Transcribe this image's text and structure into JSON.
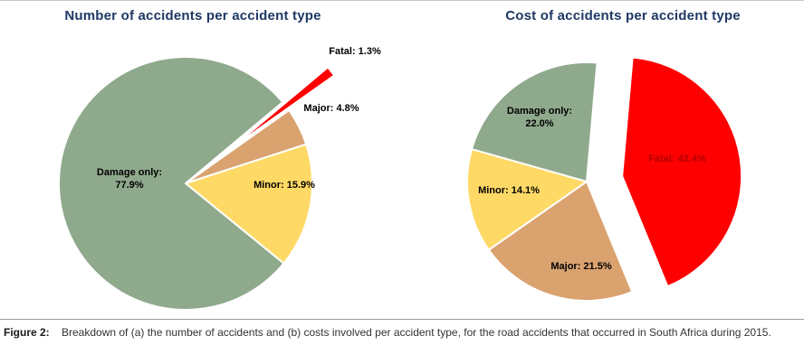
{
  "page": {
    "background": "#ffffff"
  },
  "figure": {
    "caption_label": "Figure 2:",
    "caption_text": "Breakdown of (a) the number of accidents and (b) costs involved per accident type, for the road accidents that occurred in South Africa during 2015."
  },
  "chart_data": [
    {
      "type": "pie",
      "title": "Number of accidents per accident type",
      "title_color": "#1F3864",
      "categories": [
        "Fatal",
        "Major",
        "Minor",
        "Damage only"
      ],
      "values": [
        1.3,
        4.8,
        15.9,
        77.9
      ],
      "unit": "%",
      "colors": [
        "#FF0000",
        "#D9A26F",
        "#FFD966",
        "#8FA98C"
      ],
      "start_angle": 50,
      "explode": [
        0.45,
        0,
        0,
        0
      ],
      "legend": "none",
      "labels": [
        {
          "for": "Fatal",
          "text": "Fatal: 1.3%"
        },
        {
          "for": "Major",
          "text": "Major: 4.8%"
        },
        {
          "for": "Minor",
          "text": "Minor: 15.9%"
        },
        {
          "for": "Damage only",
          "text": "Damage only: 77.9%"
        }
      ]
    },
    {
      "type": "pie",
      "title": "Cost of accidents per accident type",
      "title_color": "#1F3864",
      "categories": [
        "Fatal",
        "Major",
        "Minor",
        "Damage only"
      ],
      "values": [
        42.4,
        21.5,
        14.1,
        22.0
      ],
      "unit": "%",
      "colors": [
        "#FF0000",
        "#D9A26F",
        "#FFD966",
        "#8FA98C"
      ],
      "start_angle": 5,
      "explode": [
        0.3,
        0,
        0,
        0
      ],
      "legend": "none",
      "labels": [
        {
          "for": "Damage only",
          "text": "Damage only: 22.0%"
        },
        {
          "for": "Minor",
          "text": "Minor: 14.1%"
        },
        {
          "for": "Major",
          "text": "Major: 21.5%"
        },
        {
          "for": "Fatal",
          "text": "Fatal: 42.4%",
          "label_color": "#b30000"
        }
      ]
    }
  ]
}
